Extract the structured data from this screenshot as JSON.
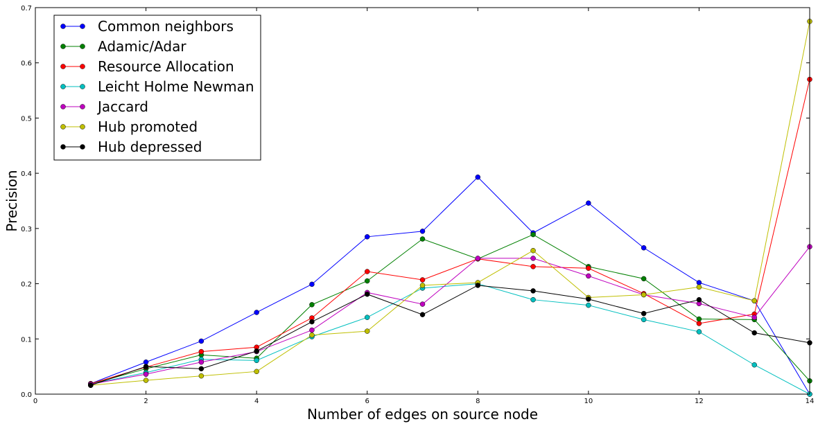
{
  "chart_data": {
    "type": "line",
    "title": "",
    "xlabel": "Number of edges on source node",
    "ylabel": "Precision",
    "xlim": [
      0,
      14
    ],
    "ylim": [
      0.0,
      0.7
    ],
    "x_ticks": [
      "0",
      "2",
      "4",
      "6",
      "8",
      "10",
      "12",
      "14"
    ],
    "y_ticks": [
      "0.0",
      "0.1",
      "0.2",
      "0.3",
      "0.4",
      "0.5",
      "0.6",
      "0.7"
    ],
    "grid": false,
    "legend_position": "top-left",
    "x": [
      1,
      2,
      3,
      4,
      5,
      6,
      7,
      8,
      9,
      10,
      11,
      12,
      13,
      14
    ],
    "series": [
      {
        "name": "Common neighbors",
        "color": "#0000ff",
        "values": [
          0.019,
          0.058,
          0.096,
          0.148,
          0.199,
          0.285,
          0.295,
          0.393,
          0.292,
          0.346,
          0.265,
          0.202,
          0.169,
          0.0
        ]
      },
      {
        "name": "Adamic/Adar",
        "color": "#008000",
        "values": [
          0.018,
          0.046,
          0.071,
          0.065,
          0.162,
          0.205,
          0.281,
          0.245,
          0.289,
          0.231,
          0.209,
          0.136,
          0.135,
          0.024
        ]
      },
      {
        "name": "Resource Allocation",
        "color": "#ff0000",
        "values": [
          0.019,
          0.049,
          0.077,
          0.085,
          0.138,
          0.222,
          0.207,
          0.245,
          0.231,
          0.228,
          0.182,
          0.128,
          0.145,
          0.57
        ]
      },
      {
        "name": "Leicht Holme Newman",
        "color": "#00bfbf",
        "values": [
          0.018,
          0.039,
          0.063,
          0.061,
          0.104,
          0.139,
          0.192,
          0.2,
          0.171,
          0.161,
          0.135,
          0.113,
          0.053,
          0.0
        ]
      },
      {
        "name": "Jaccard",
        "color": "#bf00bf",
        "values": [
          0.018,
          0.036,
          0.058,
          0.077,
          0.116,
          0.184,
          0.163,
          0.246,
          0.246,
          0.214,
          0.18,
          0.164,
          0.139,
          0.267
        ]
      },
      {
        "name": "Hub promoted",
        "color": "#bfbf00",
        "values": [
          0.016,
          0.025,
          0.033,
          0.041,
          0.107,
          0.114,
          0.197,
          0.202,
          0.26,
          0.175,
          0.18,
          0.194,
          0.169,
          0.675
        ]
      },
      {
        "name": "Hub depressed",
        "color": "#000000",
        "values": [
          0.016,
          0.05,
          0.046,
          0.078,
          0.131,
          0.181,
          0.144,
          0.197,
          0.187,
          0.172,
          0.146,
          0.171,
          0.111,
          0.093
        ]
      }
    ]
  }
}
